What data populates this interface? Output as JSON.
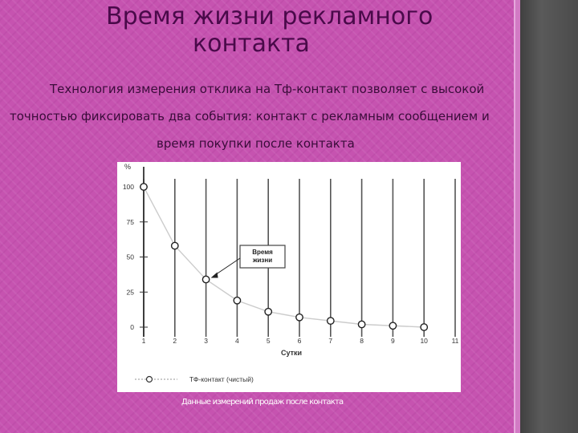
{
  "title": {
    "line1": "Время жизни рекламного",
    "line2": "контакта"
  },
  "body": {
    "line1": "Технология измерения отклика на Тф-контакт позволяет с высокой",
    "line2": "точностью фиксировать два события: контакт с рекламным сообщением и",
    "line3": "время покупки после контакта"
  },
  "chart_data": {
    "type": "line",
    "x": [
      1,
      2,
      3,
      4,
      5,
      6,
      7,
      8,
      9,
      10
    ],
    "series": [
      {
        "name": "ТФ-контакт (чистый)",
        "values": [
          100,
          58,
          34,
          19,
          11,
          7,
          4.5,
          2,
          1,
          0
        ]
      }
    ],
    "xticks": [
      "1",
      "2",
      "3",
      "4",
      "5",
      "6",
      "7",
      "8",
      "9",
      "10",
      "11"
    ],
    "yticks": [
      "0",
      "25",
      "50",
      "75",
      "100"
    ],
    "xlabel": "Сутки",
    "ylabel": "%",
    "xlim": [
      1,
      11
    ],
    "ylim": [
      0,
      100
    ],
    "grid": "vertical",
    "legend": "bottom",
    "annotation": {
      "lines": [
        "Время",
        "жизни"
      ],
      "target_x": 3
    },
    "colors": {
      "line": "#cccccc",
      "grid": "#555555",
      "marker": "#222222"
    }
  },
  "caption": "Данные измерений продаж после контакта"
}
